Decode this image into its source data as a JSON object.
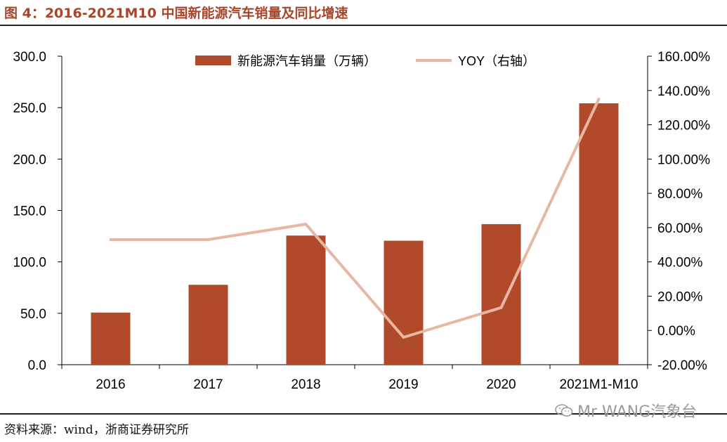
{
  "header": {
    "title": "图 4：2016-2021M10 中国新能源汽车销量及同比增速"
  },
  "footer": {
    "source": "资料来源：wind，浙商证券研究所"
  },
  "watermark": {
    "text": "Mr WANG汽象台"
  },
  "colors": {
    "bar": "#b14a2b",
    "line": "#e8b7a3",
    "axis": "#000000"
  },
  "chart_data": {
    "type": "bar",
    "title": "2016-2021M10 中国新能源汽车销量及同比增速",
    "categories": [
      "2016",
      "2017",
      "2018",
      "2019",
      "2020",
      "2021M1-M10"
    ],
    "series": [
      {
        "name": "新能源汽车销量（万辆）",
        "type": "bar",
        "axis": "left",
        "values": [
          50.7,
          77.7,
          125.6,
          120.6,
          136.7,
          254.2
        ]
      },
      {
        "name": "YOY（右轴）",
        "type": "line",
        "axis": "right",
        "values": [
          53.0,
          53.0,
          62.0,
          -4.0,
          13.3,
          135.0
        ]
      }
    ],
    "left_axis": {
      "min": 0,
      "max": 300,
      "step": 50,
      "ticks": [
        "0.0",
        "50.0",
        "100.0",
        "150.0",
        "200.0",
        "250.0",
        "300.0"
      ]
    },
    "right_axis": {
      "min": -20,
      "max": 160,
      "step": 20,
      "ticks": [
        "-20.00%",
        "0.00%",
        "20.00%",
        "40.00%",
        "60.00%",
        "80.00%",
        "100.00%",
        "120.00%",
        "140.00%",
        "160.00%"
      ]
    },
    "legend": {
      "placement": "top-center"
    },
    "grid": false
  }
}
